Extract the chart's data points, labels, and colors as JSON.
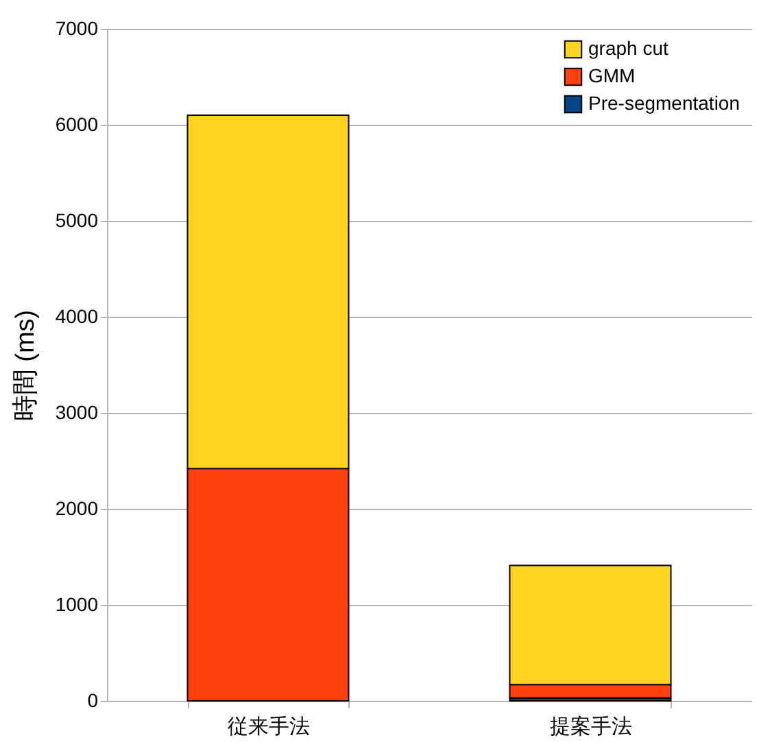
{
  "chart_data": {
    "type": "bar",
    "stacked": true,
    "ylabel": "時間 (ms)",
    "categories": [
      "従来手法",
      "提案手法"
    ],
    "series": [
      {
        "name": "Pre-segmentation",
        "color": "#004586",
        "values": [
          0,
          30
        ]
      },
      {
        "name": "GMM",
        "color": "#ff420e",
        "values": [
          2420,
          140
        ]
      },
      {
        "name": "graph cut",
        "color": "#ffd320",
        "values": [
          3680,
          1240
        ]
      }
    ],
    "ylim": [
      0,
      7000
    ],
    "yticks": [
      0,
      1000,
      2000,
      3000,
      4000,
      5000,
      6000,
      7000
    ],
    "grid": "y",
    "legend": "top right"
  }
}
